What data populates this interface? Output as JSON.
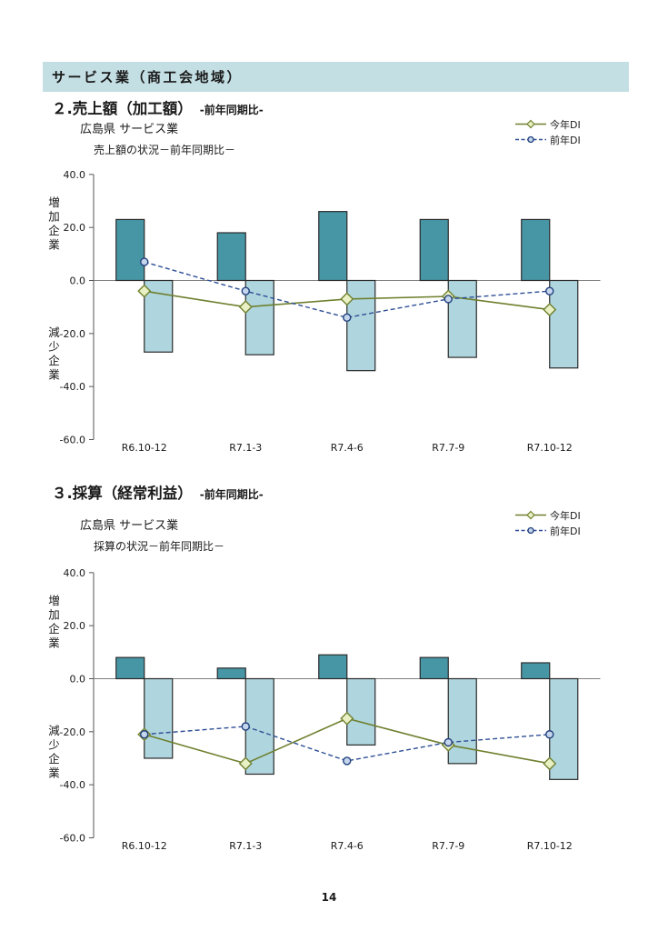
{
  "page": {
    "header": "サービス業（商工会地域）",
    "page_number": "14"
  },
  "sections": [
    {
      "number_title": "２.売上額（加工額）",
      "suffix": "-前年同期比-"
    },
    {
      "number_title": "３.採算（経常利益）",
      "suffix": "-前年同期比-"
    }
  ],
  "colors": {
    "header_bg": "#c4dfe4",
    "bar_increase": "#4796a6",
    "bar_decrease": "#afd5de",
    "bar_border": "#2b2b2b",
    "line_this_year": "#6f802f",
    "marker_this_fill": "#e9f0c3",
    "line_prev_year": "#2e4f96",
    "marker_prev_fill": "#c4d5ec",
    "marker_prev_stroke": "#22407e",
    "axis": "#555555",
    "zero_line": "#808080",
    "text": "#1a1a1a"
  },
  "chart_data": [
    {
      "type": "bar+line combo",
      "title": "広島県 サービス業",
      "subtitle": "売上額の状況－前年同期比－",
      "categories": [
        "R6.10-12",
        "R7.1-3",
        "R7.4-6",
        "R7.7-9",
        "R7.10-12"
      ],
      "series": [
        {
          "name": "増加企業",
          "role": "bar-increase",
          "type": "bar",
          "values": [
            23,
            18,
            26,
            23,
            23
          ]
        },
        {
          "name": "減少企業",
          "role": "bar-decrease",
          "type": "bar",
          "values": [
            -27,
            -28,
            -34,
            -29,
            -33
          ]
        },
        {
          "name": "今年DI",
          "role": "line-this-year",
          "type": "line",
          "values": [
            -4,
            -10,
            -7,
            -6,
            -11
          ]
        },
        {
          "name": "前年DI",
          "role": "line-prev-year",
          "type": "line",
          "values": [
            7,
            -4,
            -14,
            -7,
            -4
          ]
        }
      ],
      "ylabel_top": "増加企業",
      "ylabel_bottom": "減少企業",
      "ylim": [
        -60,
        40
      ],
      "yticks": [
        40,
        20,
        0,
        -20,
        -40,
        -60
      ],
      "grid": false,
      "legend_position": "top-right"
    },
    {
      "type": "bar+line combo",
      "title": "広島県 サービス業",
      "subtitle": "採算の状況－前年同期比－",
      "categories": [
        "R6.10-12",
        "R7.1-3",
        "R7.4-6",
        "R7.7-9",
        "R7.10-12"
      ],
      "series": [
        {
          "name": "増加企業",
          "role": "bar-increase",
          "type": "bar",
          "values": [
            8,
            4,
            9,
            8,
            6
          ]
        },
        {
          "name": "減少企業",
          "role": "bar-decrease",
          "type": "bar",
          "values": [
            -30,
            -36,
            -25,
            -32,
            -38
          ]
        },
        {
          "name": "今年DI",
          "role": "line-this-year",
          "type": "line",
          "values": [
            -21,
            -32,
            -15,
            -25,
            -32
          ]
        },
        {
          "name": "前年DI",
          "role": "line-prev-year",
          "type": "line",
          "values": [
            -21,
            -18,
            -31,
            -24,
            -21
          ]
        }
      ],
      "ylabel_top": "増加企業",
      "ylabel_bottom": "減少企業",
      "ylim": [
        -60,
        40
      ],
      "yticks": [
        40,
        20,
        0,
        -20,
        -40,
        -60
      ],
      "grid": false,
      "legend_position": "top-right"
    }
  ]
}
